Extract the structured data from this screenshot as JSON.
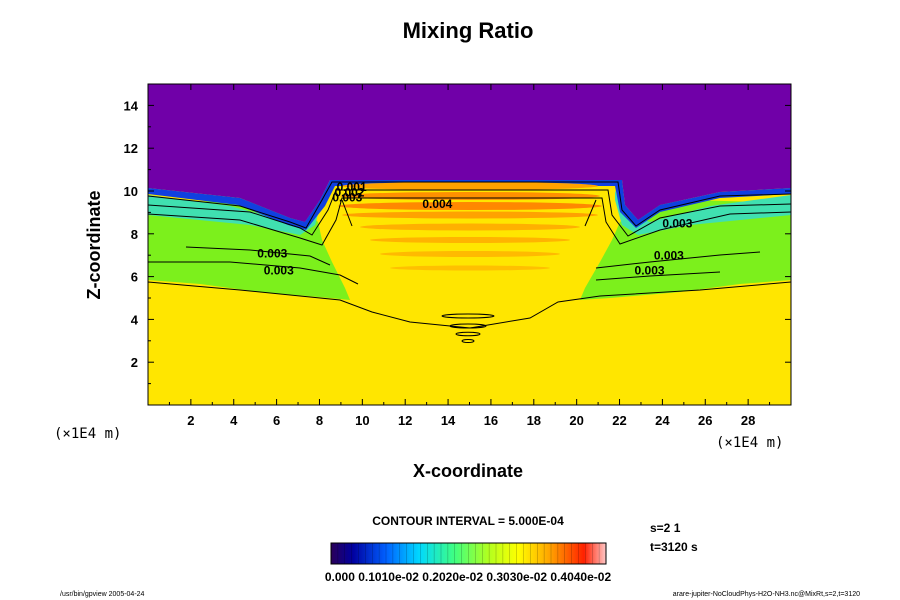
{
  "chart_data": {
    "type": "contour",
    "title": "Mixing Ratio",
    "xlabel": "X-coordinate",
    "ylabel": "Z-coordinate",
    "x_unit": "(×1E4 m)",
    "z_unit": "(×1E4 m)",
    "xlim": [
      0,
      30
    ],
    "ylim": [
      0,
      15
    ],
    "x_ticks": [
      2,
      4,
      6,
      8,
      10,
      12,
      14,
      16,
      18,
      20,
      22,
      24,
      26,
      28
    ],
    "y_ticks": [
      2,
      4,
      6,
      8,
      10,
      12,
      14
    ],
    "contour_labels": [
      {
        "text": "0.001",
        "x": 9.5,
        "z": 10.0
      },
      {
        "text": "0.002",
        "x": 9.4,
        "z": 9.75
      },
      {
        "text": "0.003",
        "x": 9.3,
        "z": 9.5
      },
      {
        "text": "0.004",
        "x": 13.5,
        "z": 9.2
      },
      {
        "text": "0.003",
        "x": 5.8,
        "z": 6.9
      },
      {
        "text": "0.003",
        "x": 6.1,
        "z": 6.1
      },
      {
        "text": "0.003",
        "x": 24.7,
        "z": 8.3
      },
      {
        "text": "0.003",
        "x": 24.3,
        "z": 6.8
      },
      {
        "text": "0.003",
        "x": 23.4,
        "z": 6.1
      }
    ],
    "contour_interval_text": "CONTOUR INTERVAL = 5.000E-04",
    "colorbar": {
      "min": 0.0,
      "max": 0.004,
      "labels_text": "0.000 0.1010e-02 0.2020e-02 0.3030e-02 0.4040e-02",
      "colors": [
        "#2a0058",
        "#0000a0",
        "#0060ff",
        "#00d8ff",
        "#40ff80",
        "#b0ff20",
        "#ffff00",
        "#ffa000",
        "#ff2000",
        "#ffc8c8"
      ]
    },
    "field_colors": {
      "top": "#7000a8",
      "bottom": "#ffe600",
      "core": "#ffa200",
      "mid_green": "#7cf01c"
    }
  },
  "meta_right": {
    "s_label": "s=2 1",
    "t_label": "t=3120 s"
  },
  "footer": {
    "left": "/usr/bin/gpview 2005-04-24",
    "right": "arare-jupiter-NoCloudPhys-H2O-NH3.nc@MixRt,s=2,t=3120"
  }
}
